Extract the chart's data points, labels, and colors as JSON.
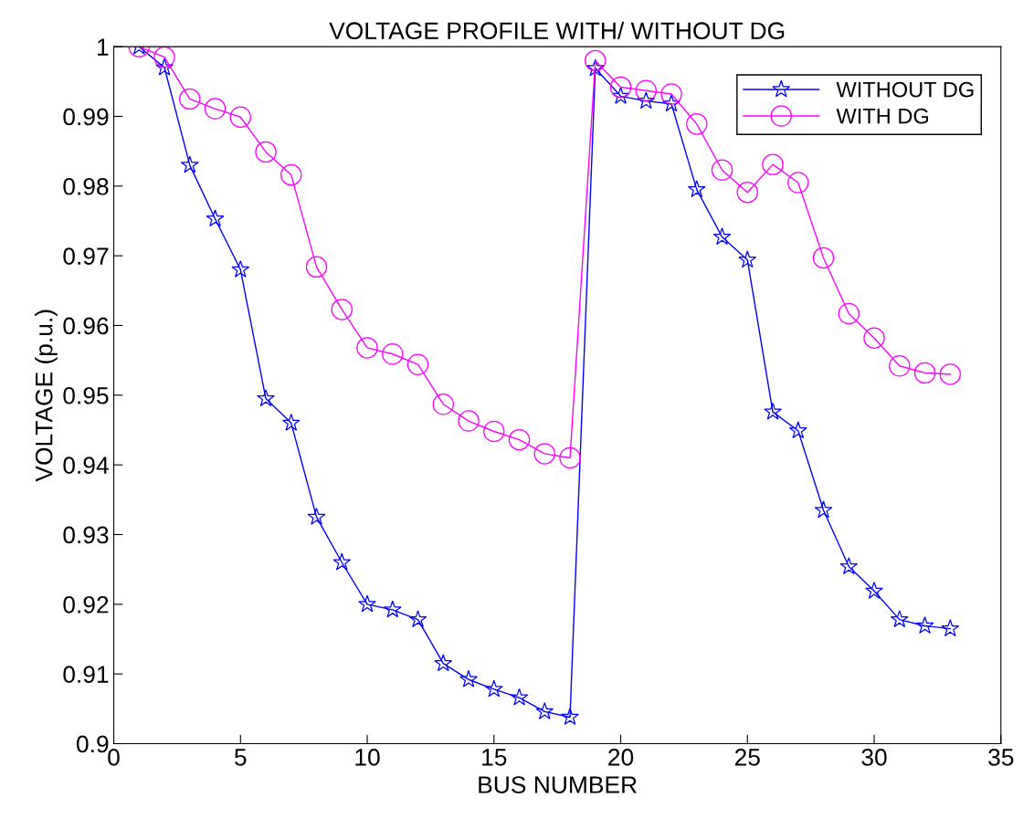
{
  "chart_data": {
    "type": "line",
    "title": "VOLTAGE PROFILE WITH/ WITHOUT DG",
    "xlabel": "BUS NUMBER",
    "ylabel": "VOLTAGE (p.u.)",
    "x": [
      1,
      2,
      3,
      4,
      5,
      6,
      7,
      8,
      9,
      10,
      11,
      12,
      13,
      14,
      15,
      16,
      17,
      18,
      19,
      20,
      21,
      22,
      23,
      24,
      25,
      26,
      27,
      28,
      29,
      30,
      31,
      32,
      33
    ],
    "series": [
      {
        "name": "WITHOUT DG",
        "color": "#0000ff",
        "marker": "star",
        "values": [
          1.0,
          0.997,
          0.983,
          0.9753,
          0.968,
          0.9495,
          0.946,
          0.9325,
          0.926,
          0.92,
          0.9192,
          0.9178,
          0.9115,
          0.9092,
          0.9078,
          0.9066,
          0.9046,
          0.9038,
          0.9969,
          0.9929,
          0.9922,
          0.9918,
          0.9795,
          0.9727,
          0.9694,
          0.9476,
          0.9449,
          0.9335,
          0.9254,
          0.9219,
          0.9178,
          0.9169,
          0.9165
        ]
      },
      {
        "name": "WITH DG",
        "color": "#ff00ff",
        "marker": "circle",
        "values": [
          1.0,
          0.9985,
          0.9925,
          0.9911,
          0.9899,
          0.9849,
          0.9816,
          0.9684,
          0.9623,
          0.9568,
          0.9559,
          0.9544,
          0.9487,
          0.9463,
          0.9448,
          0.9436,
          0.9416,
          0.941,
          0.998,
          0.9942,
          0.9937,
          0.9932,
          0.9889,
          0.9823,
          0.9791,
          0.9831,
          0.9805,
          0.9697,
          0.9617,
          0.9582,
          0.9542,
          0.9532,
          0.953
        ]
      }
    ],
    "xlim": [
      0,
      35
    ],
    "xticks": [
      0,
      5,
      10,
      15,
      20,
      25,
      30,
      35
    ],
    "ylim": [
      0.9,
      1.0
    ],
    "yticks": [
      0.9,
      0.91,
      0.92,
      0.93,
      0.94,
      0.95,
      0.96,
      0.97,
      0.98,
      0.99,
      1
    ],
    "grid": false,
    "legend": "top right",
    "line_style": "solid"
  }
}
